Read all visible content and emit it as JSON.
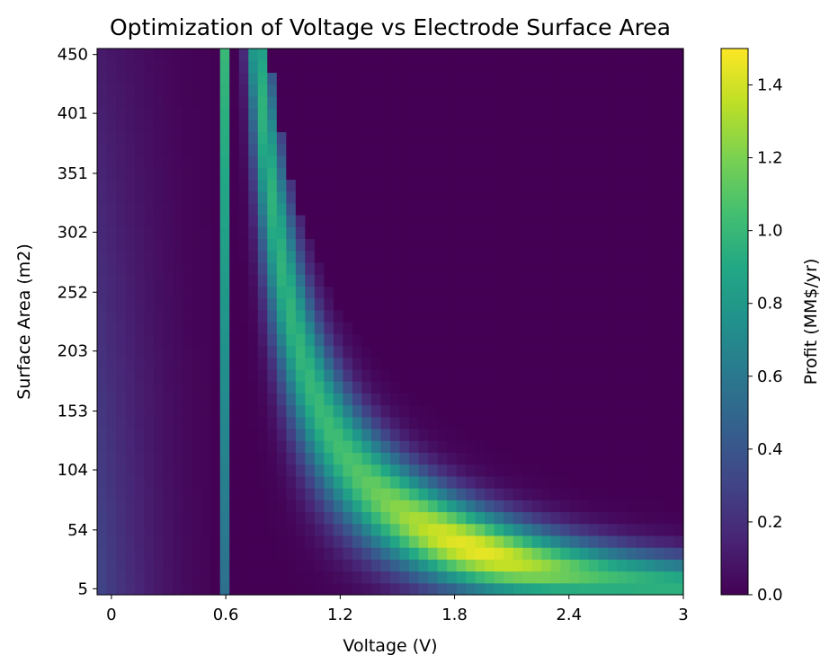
{
  "chart_data": {
    "type": "heatmap",
    "title": "Optimization of Voltage vs Electrode Surface Area",
    "xlabel": "Voltage (V)",
    "ylabel": "Surface Area (m2)",
    "x_ticks": [
      "0",
      "0.6",
      "1.2",
      "1.8",
      "2.4",
      "3"
    ],
    "x_tick_values": [
      0,
      0.6,
      1.2,
      1.8,
      2.4,
      3.0
    ],
    "y_ticks": [
      "450",
      "401",
      "351",
      "302",
      "252",
      "203",
      "153",
      "104",
      "54",
      "5"
    ],
    "y_tick_values": [
      450,
      401,
      351,
      302,
      252,
      203,
      153,
      104,
      54,
      5
    ],
    "xlim": [
      -0.075,
      3.0
    ],
    "ylim": [
      0,
      455
    ],
    "x_grid": {
      "start": -0.075,
      "end": 3.0,
      "count": 62
    },
    "y_grid": {
      "start": 0,
      "end": 455,
      "count": 46
    },
    "value_model": "z = 0 for V < 0.57; strip at V 0.57-0.62 rises toward 1.0 at high area; profit ridge along area ≈ 155/(V-0.5) with peak 1.45 near V≈1.9, A≈5; drops to 0 above a hyperbolic cutoff; faint low-value band for V<0.5",
    "colorbar": {
      "label": "Profit (MM$/yr)",
      "min": 0.0,
      "max": 1.5,
      "ticks": [
        "0.0",
        "0.2",
        "0.4",
        "0.6",
        "0.8",
        "1.0",
        "1.2",
        "1.4"
      ],
      "tick_values": [
        0.0,
        0.2,
        0.4,
        0.6,
        0.8,
        1.0,
        1.2,
        1.4
      ],
      "colormap": "viridis"
    },
    "grid": false
  }
}
